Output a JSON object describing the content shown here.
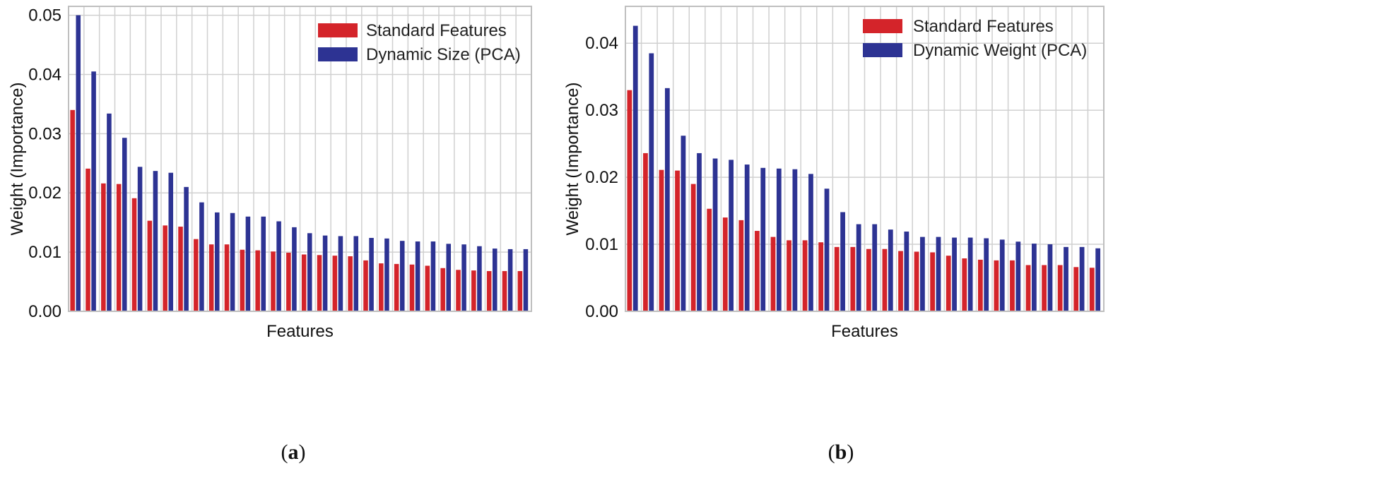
{
  "colors": {
    "standard": "#d4242a",
    "dynamic": "#2d3393",
    "grid": "#d0d0d0",
    "frame": "#bfbfbf"
  },
  "chart_data": [
    {
      "type": "bar",
      "panel_label": "a",
      "xlabel": "Features",
      "ylabel": "Weight (Importance)",
      "ylim": [
        0,
        0.0515
      ],
      "yticks": [
        "0.00",
        "0.01",
        "0.02",
        "0.03",
        "0.04",
        "0.05"
      ],
      "grid": true,
      "legend": "top-right",
      "series": [
        {
          "name": "Standard Features",
          "color": "#d4242a",
          "values": [
            0.034,
            0.0241,
            0.0216,
            0.0215,
            0.0191,
            0.0153,
            0.0145,
            0.0143,
            0.0122,
            0.0113,
            0.0113,
            0.0104,
            0.0103,
            0.0101,
            0.0099,
            0.0096,
            0.0095,
            0.0094,
            0.0093,
            0.0086,
            0.0081,
            0.008,
            0.0079,
            0.0077,
            0.0073,
            0.007,
            0.0069,
            0.0068,
            0.0068,
            0.0068
          ]
        },
        {
          "name": "Dynamic Size (PCA)",
          "color": "#2d3393",
          "values": [
            0.05,
            0.0405,
            0.0334,
            0.0293,
            0.0244,
            0.0237,
            0.0234,
            0.021,
            0.0184,
            0.0167,
            0.0166,
            0.016,
            0.016,
            0.0152,
            0.0142,
            0.0132,
            0.0128,
            0.0127,
            0.0127,
            0.0124,
            0.0123,
            0.0119,
            0.0118,
            0.0118,
            0.0114,
            0.0113,
            0.011,
            0.0106,
            0.0105,
            0.0105
          ]
        }
      ]
    },
    {
      "type": "bar",
      "panel_label": "b",
      "xlabel": "Features",
      "ylabel": "Weight (Importance)",
      "ylim": [
        0,
        0.0455
      ],
      "yticks": [
        "0.00",
        "0.01",
        "0.02",
        "0.03",
        "0.04"
      ],
      "grid": true,
      "legend": "top-right",
      "series": [
        {
          "name": "Standard Features",
          "color": "#d4242a",
          "values": [
            0.033,
            0.0236,
            0.0211,
            0.021,
            0.019,
            0.0153,
            0.014,
            0.0136,
            0.012,
            0.0111,
            0.0106,
            0.0106,
            0.0103,
            0.0096,
            0.0096,
            0.0093,
            0.0093,
            0.009,
            0.0089,
            0.0088,
            0.0083,
            0.0079,
            0.0077,
            0.0076,
            0.0076,
            0.0069,
            0.0069,
            0.0069,
            0.0066,
            0.0065
          ]
        },
        {
          "name": "Dynamic Weight (PCA)",
          "color": "#2d3393",
          "values": [
            0.0426,
            0.0385,
            0.0333,
            0.0262,
            0.0236,
            0.0228,
            0.0226,
            0.0219,
            0.0214,
            0.0213,
            0.0212,
            0.0205,
            0.0183,
            0.0148,
            0.013,
            0.013,
            0.0122,
            0.0119,
            0.0111,
            0.0111,
            0.011,
            0.011,
            0.0109,
            0.0107,
            0.0104,
            0.0101,
            0.01,
            0.0096,
            0.0096,
            0.0094
          ]
        }
      ]
    }
  ]
}
